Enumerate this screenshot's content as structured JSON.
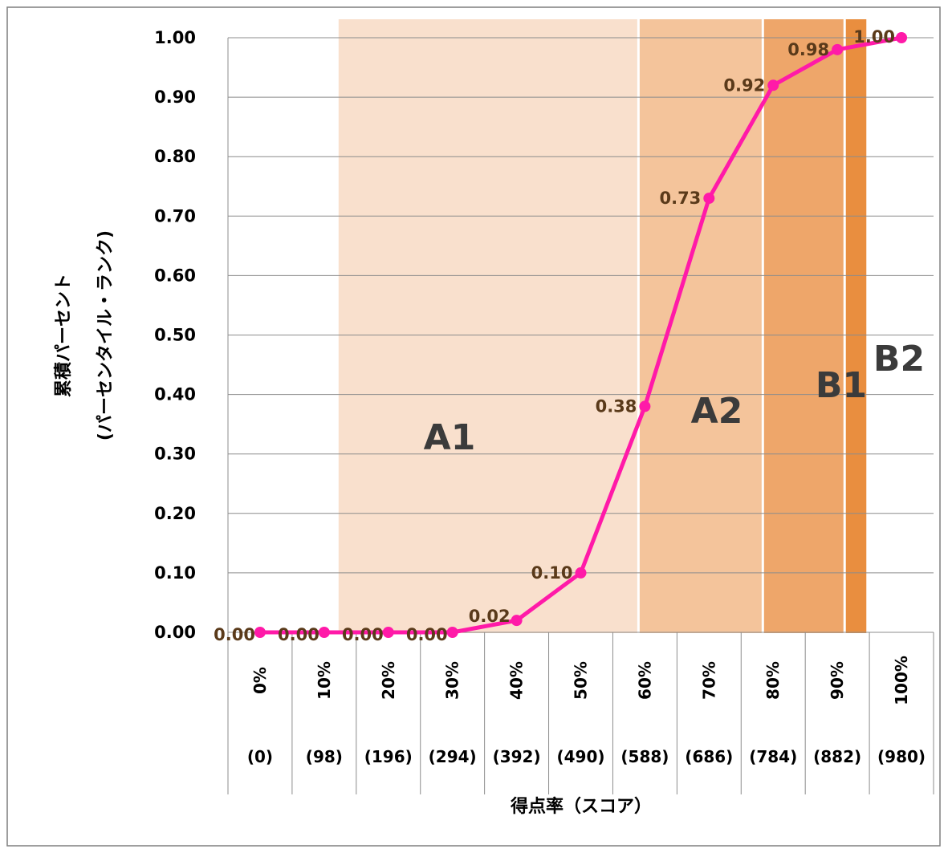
{
  "chart_data": {
    "type": "line",
    "xlabel": "得点率（スコア）",
    "ylabel_line1": "累積パーセント",
    "ylabel_line2": "(パーセンタイル・ランク)",
    "ylim": [
      0,
      1
    ],
    "y_ticks": [
      "0.00",
      "0.10",
      "0.20",
      "0.30",
      "0.40",
      "0.50",
      "0.60",
      "0.70",
      "0.80",
      "0.90",
      "1.00"
    ],
    "categories": [
      "0%",
      "10%",
      "20%",
      "30%",
      "40%",
      "50%",
      "60%",
      "70%",
      "80%",
      "90%",
      "100%"
    ],
    "category_scores": [
      "(0)",
      "(98)",
      "(196)",
      "(294)",
      "(392)",
      "(490)",
      "(588)",
      "(686)",
      "(784)",
      "(882)",
      "(980)"
    ],
    "series": [
      {
        "values": [
          0.0,
          0.0,
          0.0,
          0.0,
          0.02,
          0.1,
          0.38,
          0.73,
          0.92,
          0.98,
          1.0
        ],
        "labels": [
          "0.00",
          "0.00",
          "0.00",
          "0.00",
          "0.02",
          "0.10",
          "0.38",
          "0.73",
          "0.92",
          "0.98",
          "1.00"
        ],
        "color": "#ff1aa8"
      }
    ],
    "bands": [
      {
        "label": "A1",
        "from_score": 120,
        "to_score": 580,
        "color": "#f9e0cd"
      },
      {
        "label": "A2",
        "from_score": 580,
        "to_score": 770,
        "color": "#f4c49b"
      },
      {
        "label": "B1",
        "from_score": 770,
        "to_score": 895,
        "color": "#eea66a"
      },
      {
        "label": "B2",
        "from_score": 895,
        "to_score": 930,
        "color": "#e98e3f"
      }
    ],
    "grid": true,
    "legend": false
  }
}
